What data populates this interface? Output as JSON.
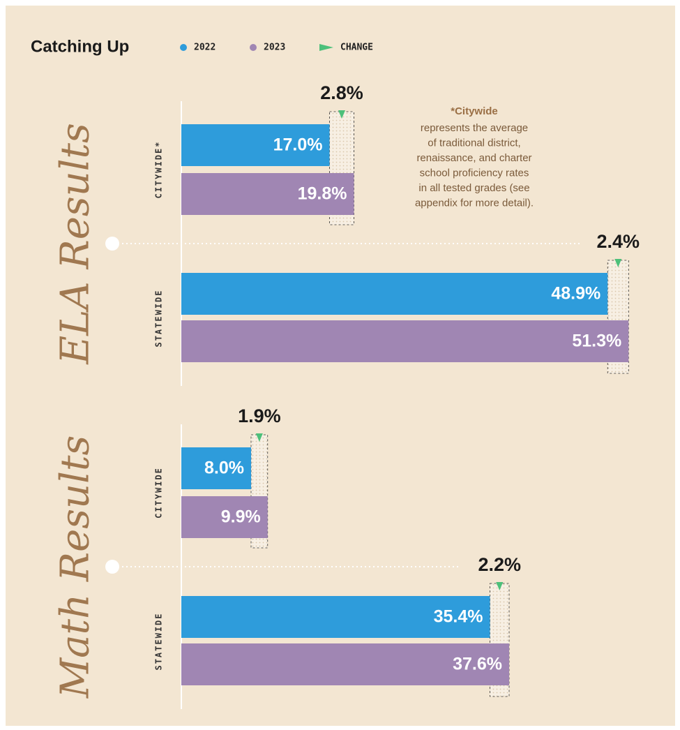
{
  "title": "Catching Up",
  "note": {
    "heading": "*Citywide",
    "lines": [
      "represents the average",
      "of traditional district,",
      "renaissance, and charter",
      "school proficiency rates",
      "in all tested grades (see",
      "appendix for more detail)."
    ]
  },
  "chart_data": [
    {
      "type": "bar",
      "title": "ELA Results",
      "categories": [
        "CITYWIDE*",
        "STATEWIDE"
      ],
      "series": [
        {
          "name": "2022",
          "color": "#2e9cdb",
          "values": [
            17.0,
            48.9
          ],
          "value_labels": [
            "17.0%",
            "48.9%"
          ]
        },
        {
          "name": "2023",
          "color": "#a086b3",
          "values": [
            19.8,
            51.3
          ],
          "value_labels": [
            "19.8%",
            "51.3%"
          ]
        }
      ],
      "change": {
        "name": "CHANGE",
        "color": "#4cc07a",
        "values": [
          2.8,
          2.4
        ],
        "value_labels": [
          "2.8%",
          "2.4%"
        ]
      },
      "xlim": [
        0,
        52
      ]
    },
    {
      "type": "bar",
      "title": "Math Results",
      "categories": [
        "CITYWIDE",
        "STATEWIDE"
      ],
      "series": [
        {
          "name": "2022",
          "color": "#2e9cdb",
          "values": [
            8.0,
            35.4
          ],
          "value_labels": [
            "8.0%",
            "35.4%"
          ]
        },
        {
          "name": "2023",
          "color": "#a086b3",
          "values": [
            9.9,
            37.6
          ],
          "value_labels": [
            "9.9%",
            "37.6%"
          ]
        }
      ],
      "change": {
        "name": "CHANGE",
        "color": "#4cc07a",
        "values": [
          1.9,
          2.2
        ],
        "value_labels": [
          "1.9%",
          "2.2%"
        ]
      },
      "xlim": [
        0,
        52
      ]
    }
  ]
}
